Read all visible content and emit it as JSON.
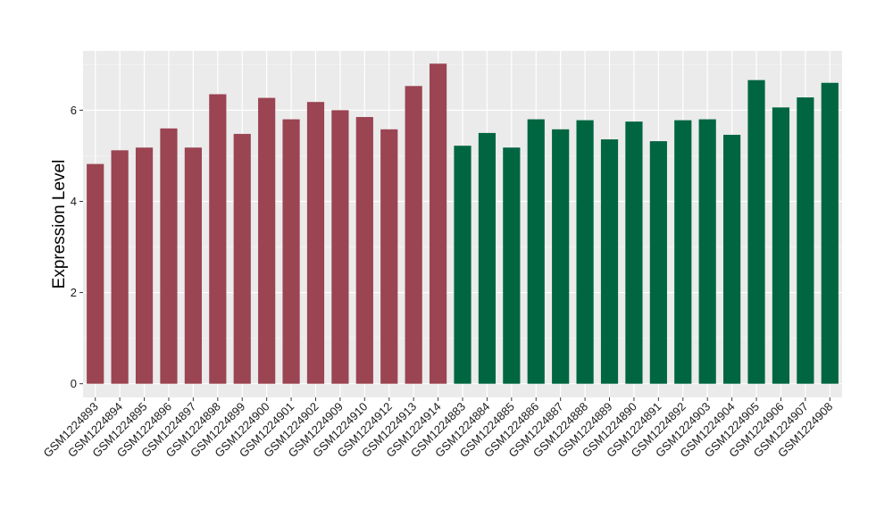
{
  "chart_data": {
    "type": "bar",
    "title": "",
    "xlabel": "",
    "ylabel": "Expression Level",
    "ylim": [
      -0.3,
      7.3
    ],
    "yticks": [
      0,
      2,
      4,
      6
    ],
    "grid": true,
    "legend": "none",
    "categories": [
      "GSM1224893",
      "GSM1224894",
      "GSM1224895",
      "GSM1224896",
      "GSM1224897",
      "GSM1224898",
      "GSM1224899",
      "GSM1224900",
      "GSM1224901",
      "GSM1224902",
      "GSM1224909",
      "GSM1224910",
      "GSM1224912",
      "GSM1224913",
      "GSM1224914",
      "GSM1224883",
      "GSM1224884",
      "GSM1224885",
      "GSM1224886",
      "GSM1224887",
      "GSM1224888",
      "GSM1224889",
      "GSM1224890",
      "GSM1224891",
      "GSM1224892",
      "GSM1224903",
      "GSM1224904",
      "GSM1224905",
      "GSM1224906",
      "GSM1224907",
      "GSM1224908"
    ],
    "values": [
      4.82,
      5.12,
      5.18,
      5.6,
      5.18,
      6.35,
      5.48,
      6.27,
      5.8,
      6.18,
      6.0,
      5.85,
      5.58,
      6.53,
      7.02,
      5.22,
      5.5,
      5.18,
      5.8,
      5.58,
      5.78,
      5.36,
      5.75,
      5.32,
      5.78,
      5.8,
      5.46,
      6.66,
      6.06,
      6.28,
      6.6
    ],
    "groups": [
      0,
      0,
      0,
      0,
      0,
      0,
      0,
      0,
      0,
      0,
      0,
      0,
      0,
      0,
      0,
      1,
      1,
      1,
      1,
      1,
      1,
      1,
      1,
      1,
      1,
      1,
      1,
      1,
      1,
      1,
      1
    ],
    "group_colors": [
      "#9b4452",
      "#006641"
    ]
  },
  "colors": {
    "panel_background": "#ebebeb",
    "grid_major": "#ffffff",
    "tick_text": "#1a1a1a"
  }
}
